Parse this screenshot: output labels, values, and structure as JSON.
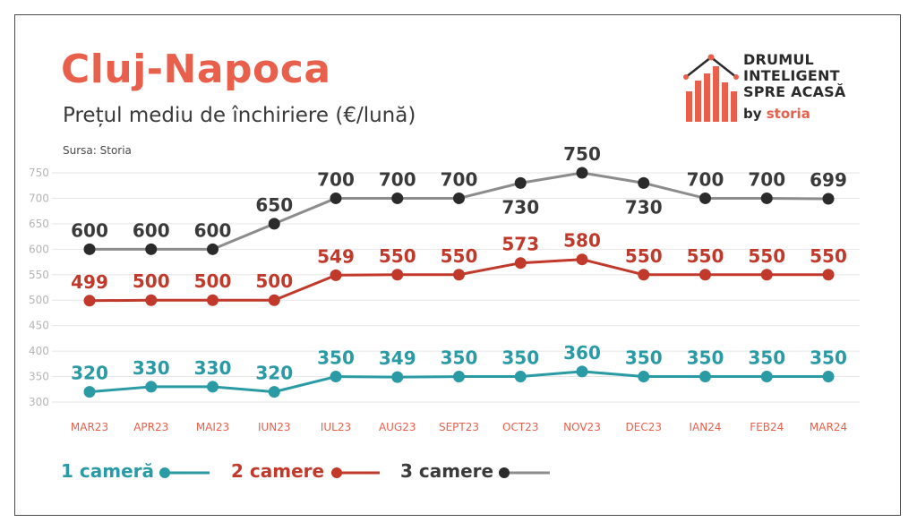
{
  "header": {
    "title": "Cluj-Napoca",
    "subtitle": "Prețul mediu de închiriere (€/lună)",
    "source": "Sursa: Storia"
  },
  "logo": {
    "line1": "DRUMUL",
    "line2": "INTELIGENT",
    "line3": "SPRE ACASĂ",
    "by": "by",
    "brand": "storia"
  },
  "colors": {
    "accent": "#e8604c",
    "series_1": "#2a9aa5",
    "series_2": "#c0392b",
    "series_3_label": "#3a3a3a",
    "series_3_line": "#8c8c8c",
    "series_3_marker": "#2b2b2b",
    "tick": "#b5b5b5",
    "xtick": "#e8604c",
    "grid": "#e6e6e6"
  },
  "chart_data": {
    "type": "line",
    "categories": [
      "MAR23",
      "APR23",
      "MAI23",
      "IUN23",
      "IUL23",
      "AUG23",
      "SEPT23",
      "OCT23",
      "NOV23",
      "DEC23",
      "IAN24",
      "FEB24",
      "MAR24"
    ],
    "yticks": [
      300,
      350,
      400,
      450,
      500,
      550,
      600,
      650,
      700,
      750
    ],
    "ylim": [
      300,
      750
    ],
    "grid": true,
    "legend_position": "bottom-left",
    "series": [
      {
        "name": "1 cameră",
        "values": [
          320,
          330,
          330,
          320,
          350,
          349,
          350,
          350,
          360,
          350,
          350,
          350,
          350
        ]
      },
      {
        "name": "2 camere",
        "values": [
          499,
          500,
          500,
          500,
          549,
          550,
          550,
          573,
          580,
          550,
          550,
          550,
          550
        ]
      },
      {
        "name": "3 camere",
        "values": [
          600,
          600,
          600,
          650,
          700,
          700,
          700,
          730,
          750,
          730,
          700,
          700,
          699
        ]
      }
    ]
  }
}
